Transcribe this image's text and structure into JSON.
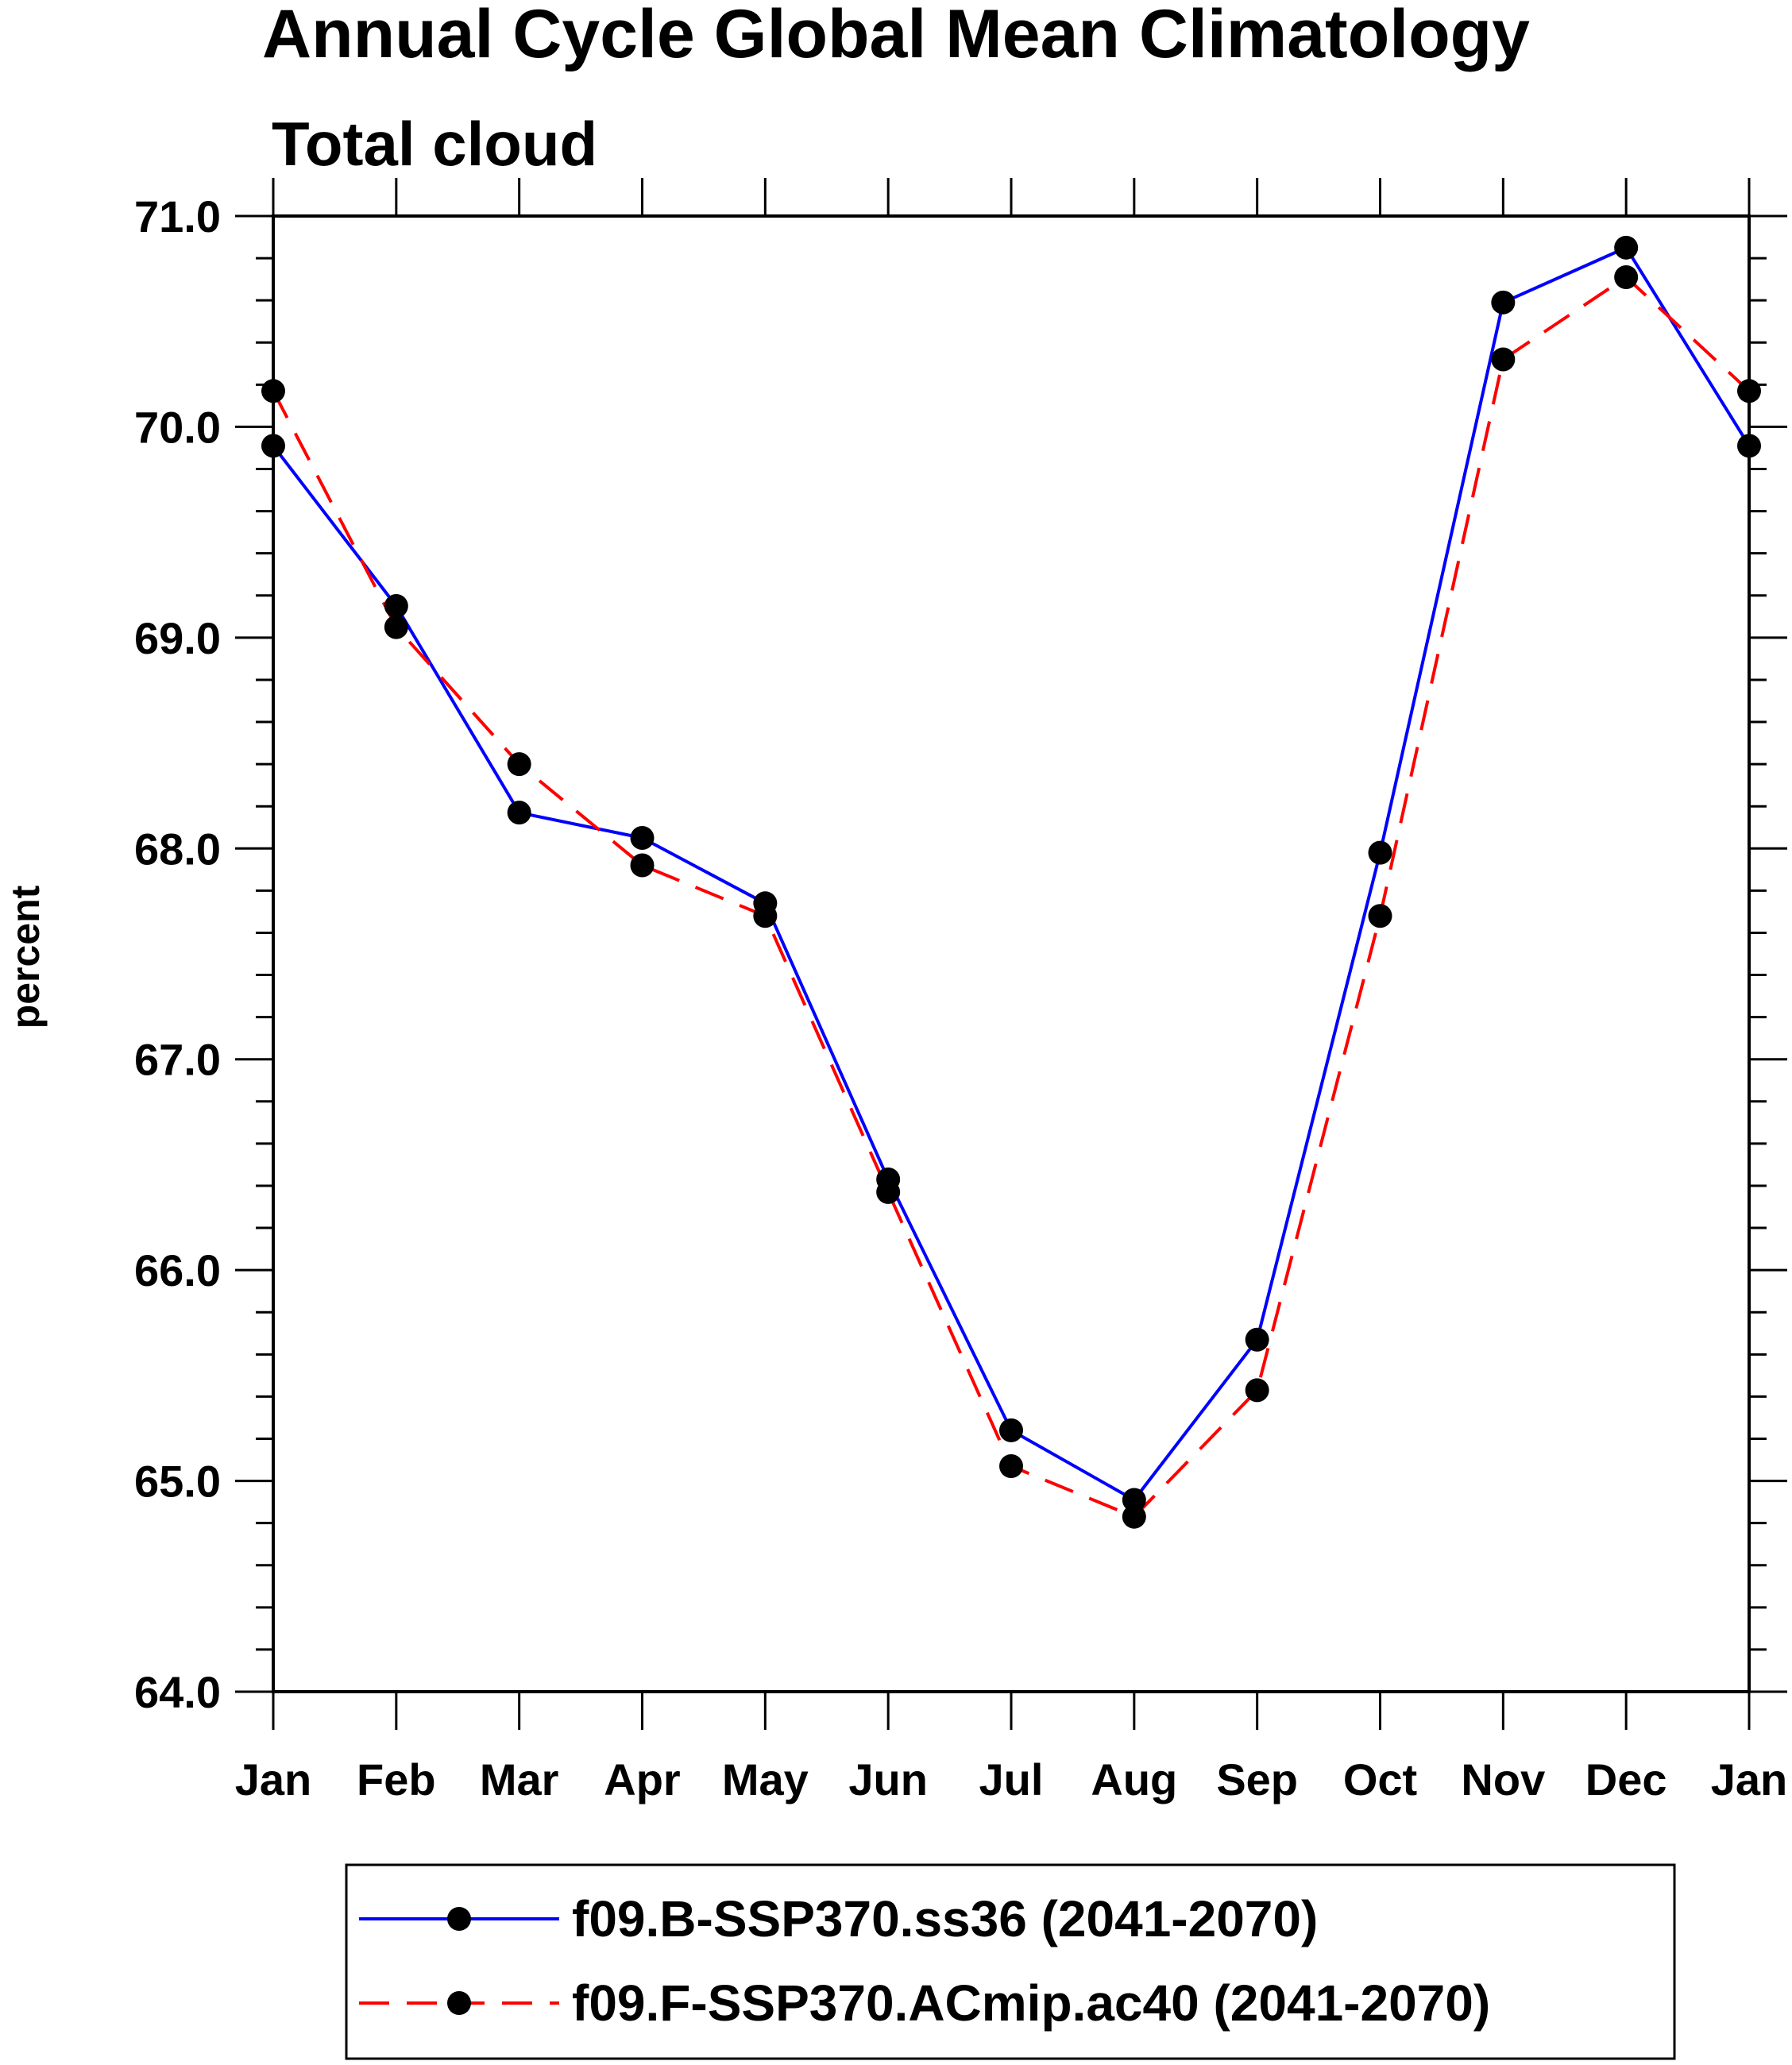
{
  "chart_data": {
    "type": "line",
    "title": "Annual Cycle Global Mean Climatology",
    "subtitle": "Total cloud",
    "xlabel": "",
    "ylabel": "percent",
    "categories": [
      "Jan",
      "Feb",
      "Mar",
      "Apr",
      "May",
      "Jun",
      "Jul",
      "Aug",
      "Sep",
      "Oct",
      "Nov",
      "Dec",
      "Jan"
    ],
    "ylim": [
      64.0,
      71.0
    ],
    "yticks": [
      "64.0",
      "65.0",
      "66.0",
      "67.0",
      "68.0",
      "69.0",
      "70.0",
      "71.0"
    ],
    "grid": false,
    "legend_position": "bottom",
    "series": [
      {
        "name": "f09.B-SSP370.ss36 (2041-2070)",
        "color": "#0000ff",
        "line_style": "solid",
        "marker": "filled-circle",
        "values": [
          69.91,
          69.15,
          68.17,
          68.05,
          67.74,
          66.43,
          65.24,
          64.91,
          65.67,
          67.98,
          70.59,
          70.85,
          69.91
        ]
      },
      {
        "name": "f09.F-SSP370.ACmip.ac40 (2041-2070)",
        "color": "#ff0000",
        "line_style": "dashed",
        "marker": "filled-circle",
        "values": [
          70.17,
          69.05,
          68.4,
          67.92,
          67.68,
          66.37,
          65.07,
          64.83,
          65.43,
          67.68,
          70.32,
          70.71,
          70.17
        ]
      }
    ]
  }
}
